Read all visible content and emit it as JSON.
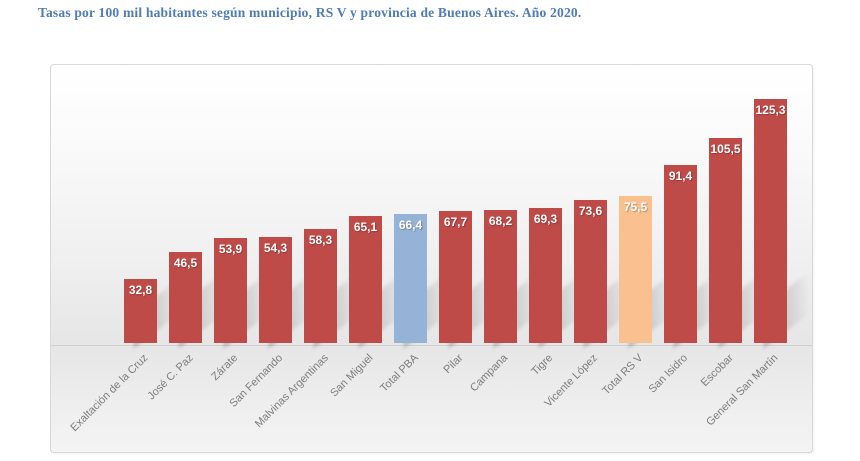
{
  "page": {
    "title": "Tasas por 100 mil habitantes según municipio, RS V y provincia de Buenos Aires. Año 2020."
  },
  "chart_data": {
    "type": "bar",
    "title": "Tasas por 100 mil habitantes según municipio, RS V y provincia de Buenos Aires. Año 2020.",
    "categories": [
      "Exaltación de la Cruz",
      "José C. Paz",
      "Zárate",
      "San Fernando",
      "Malvinas Argentinas",
      "San Miguel",
      "Total PBA",
      "Pilar",
      "Campana",
      "Tigre",
      "Vicente López",
      "Total RS V",
      "San Isidro",
      "Escobar",
      "General San Martín"
    ],
    "values": [
      32.8,
      46.5,
      53.9,
      54.3,
      58.3,
      65.1,
      66.4,
      67.7,
      68.2,
      69.3,
      73.6,
      75.5,
      91.4,
      105.5,
      125.3
    ],
    "labels_display": [
      "32,8",
      "46,5",
      "53,9",
      "54,3",
      "58,3",
      "65,1",
      "66,4",
      "67,7",
      "68,2",
      "69,3",
      "73,6",
      "75,5",
      "91,4",
      "105,5",
      "125,3"
    ],
    "xlabel": "",
    "ylabel": "",
    "ylim": [
      0,
      130
    ],
    "grid": false,
    "legend": "none",
    "orientation": "vertical",
    "data_labels_position": "inside-end",
    "data_label_color": "#FFFFFF",
    "decimal_separator": ",",
    "category_label_rotation_deg": 45,
    "category_label_color": "#7D7D7D",
    "bar_color_default": "#BE4B48",
    "bar_color_overrides": {
      "Total PBA": "#95B3D7",
      "Total RS V": "#FAC090"
    }
  },
  "colors": {
    "title": "#4E7DB5",
    "frame_border": "#D8D8D8"
  }
}
